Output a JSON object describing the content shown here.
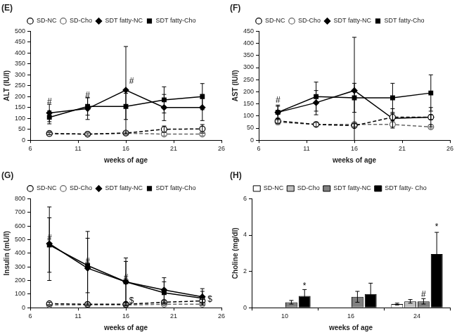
{
  "chart_data": [
    {
      "type": "line",
      "title": "(E)",
      "x_label": "weeks of age",
      "y_label": "ALT (IU/l)",
      "x": [
        8,
        12,
        16,
        20,
        24
      ],
      "xlim": [
        6,
        26
      ],
      "xticks": [
        6,
        11,
        16,
        21,
        26
      ],
      "ylim": [
        0,
        500
      ],
      "yticks": [
        0,
        50,
        100,
        150,
        200,
        250,
        300,
        350,
        400,
        450,
        500
      ],
      "grid": false,
      "legend": "top",
      "series": [
        {
          "name": "SD-NC",
          "color": "#000000",
          "marker": "open_circle",
          "line_style": "dashed",
          "values": [
            30,
            28,
            33,
            50,
            52
          ],
          "errors": [
            5,
            5,
            5,
            15,
            20
          ]
        },
        {
          "name": "SD-Cho",
          "color": "#666666",
          "marker": "open_circle",
          "line_style": "dashed",
          "values": [
            32,
            27,
            32,
            28,
            28
          ],
          "errors": [
            5,
            5,
            5,
            8,
            8
          ]
        },
        {
          "name": "SDT fatty-NC",
          "color": "#000000",
          "marker": "diamond",
          "line_style": "solid",
          "values": [
            125,
            145,
            230,
            150,
            150
          ],
          "errors": [
            40,
            50,
            200,
            60,
            60
          ]
        },
        {
          "name": "SDT fatty-Cho",
          "color": "#000000",
          "marker": "square",
          "line_style": "solid",
          "values": [
            105,
            155,
            155,
            185,
            200
          ],
          "errors": [
            30,
            40,
            60,
            60,
            60
          ]
        }
      ],
      "annotations": [
        {
          "x": 8,
          "y": 175,
          "text": "#"
        },
        {
          "x": 12,
          "y": 205,
          "text": "#"
        },
        {
          "x": 16.6,
          "y": 270,
          "text": "#"
        }
      ]
    },
    {
      "type": "line",
      "title": "(F)",
      "x_label": "weeks of age",
      "y_label": "AST (IU/l)",
      "x": [
        8,
        12,
        16,
        20,
        24
      ],
      "xlim": [
        6,
        26
      ],
      "xticks": [
        6,
        11,
        16,
        21,
        26
      ],
      "ylim": [
        0,
        450
      ],
      "yticks": [
        0,
        50,
        100,
        150,
        200,
        250,
        300,
        350,
        400,
        450
      ],
      "grid": false,
      "legend": "top",
      "series": [
        {
          "name": "SD-NC",
          "color": "#000000",
          "marker": "open_circle",
          "line_style": "dashed",
          "values": [
            80,
            65,
            60,
            95,
            95
          ],
          "errors": [
            10,
            8,
            8,
            15,
            10
          ]
        },
        {
          "name": "SD-Cho",
          "color": "#666666",
          "marker": "open_circle",
          "line_style": "dashed",
          "values": [
            75,
            65,
            65,
            65,
            55
          ],
          "errors": [
            10,
            8,
            8,
            10,
            8
          ]
        },
        {
          "name": "SDT fatty-NC",
          "color": "#000000",
          "marker": "diamond",
          "line_style": "solid",
          "values": [
            115,
            155,
            205,
            90,
            95
          ],
          "errors": [
            30,
            50,
            220,
            40,
            40
          ]
        },
        {
          "name": "SDT fatty-Cho",
          "color": "#000000",
          "marker": "square",
          "line_style": "solid",
          "values": [
            115,
            180,
            175,
            175,
            195
          ],
          "errors": [
            25,
            60,
            60,
            60,
            75
          ]
        }
      ],
      "annotations": [
        {
          "x": 8,
          "y": 165,
          "text": "#"
        }
      ]
    },
    {
      "type": "line",
      "title": "(G)",
      "x_label": "weeks of age",
      "y_label": "Insulin (mU/l)",
      "x": [
        8,
        12,
        16,
        20,
        24
      ],
      "xlim": [
        6,
        26
      ],
      "xticks": [
        6,
        11,
        16,
        21,
        26
      ],
      "ylim": [
        0,
        800
      ],
      "yticks": [
        0,
        100,
        200,
        300,
        400,
        500,
        600,
        700,
        800
      ],
      "grid": false,
      "legend": "top",
      "series": [
        {
          "name": "SD-NC",
          "color": "#000000",
          "marker": "open_circle",
          "line_style": "dashed",
          "values": [
            30,
            25,
            25,
            40,
            50
          ],
          "errors": [
            10,
            8,
            8,
            10,
            10
          ]
        },
        {
          "name": "SD-Cho",
          "color": "#666666",
          "marker": "open_circle",
          "line_style": "dashed",
          "values": [
            20,
            20,
            20,
            25,
            25
          ],
          "errors": [
            5,
            5,
            5,
            8,
            8
          ]
        },
        {
          "name": "SDT fatty-NC",
          "color": "#000000",
          "marker": "diamond",
          "line_style": "solid",
          "values": [
            470,
            290,
            190,
            130,
            80
          ],
          "errors": [
            270,
            270,
            175,
            90,
            60
          ]
        },
        {
          "name": "SDT fatty-Cho",
          "color": "#000000",
          "marker": "square",
          "line_style": "solid",
          "values": [
            460,
            310,
            190,
            110,
            70
          ],
          "errors": [
            200,
            200,
            150,
            80,
            50
          ]
        }
      ],
      "annotations": [
        {
          "x": 8,
          "y": 510,
          "text": "#"
        },
        {
          "x": 12,
          "y": 340,
          "text": "#"
        },
        {
          "x": 16,
          "y": 220,
          "text": "#"
        },
        {
          "x": 16.6,
          "y": 50,
          "text": "$"
        },
        {
          "x": 24.8,
          "y": 60,
          "text": "$"
        }
      ]
    },
    {
      "type": "bar",
      "title": "(H)",
      "x_label": "weeks of age",
      "y_label": "Choline (mg/dl)",
      "categories": [
        "10",
        "16",
        "24"
      ],
      "ylim": [
        0,
        6
      ],
      "yticks": [
        0,
        2,
        4,
        6
      ],
      "grid": false,
      "legend": "top",
      "series": [
        {
          "name": "SD-NC",
          "color": "#ffffff",
          "values": [
            null,
            null,
            0.2
          ],
          "errors": [
            null,
            null,
            0.05
          ]
        },
        {
          "name": "SD-Cho",
          "color": "#bfbfbf",
          "values": [
            null,
            null,
            0.35
          ],
          "errors": [
            null,
            null,
            0.1
          ]
        },
        {
          "name": "SDT fatty-NC",
          "color": "#808080",
          "values": [
            0.3,
            0.6,
            0.35
          ],
          "errors": [
            0.1,
            0.3,
            0.15
          ]
        },
        {
          "name": "SDT fatty- Cho",
          "color": "#000000",
          "values": [
            0.65,
            0.75,
            2.95
          ],
          "errors": [
            0.35,
            0.6,
            1.2
          ]
        }
      ],
      "annotations": [
        {
          "category": "10",
          "series": "SDT fatty- Cho",
          "y": 1.2,
          "text": "*"
        },
        {
          "category": "24",
          "series": "SDT fatty-NC",
          "y": 0.7,
          "text": "#"
        },
        {
          "category": "24",
          "series": "SDT fatty- Cho",
          "y": 4.45,
          "text": "*"
        }
      ]
    }
  ]
}
